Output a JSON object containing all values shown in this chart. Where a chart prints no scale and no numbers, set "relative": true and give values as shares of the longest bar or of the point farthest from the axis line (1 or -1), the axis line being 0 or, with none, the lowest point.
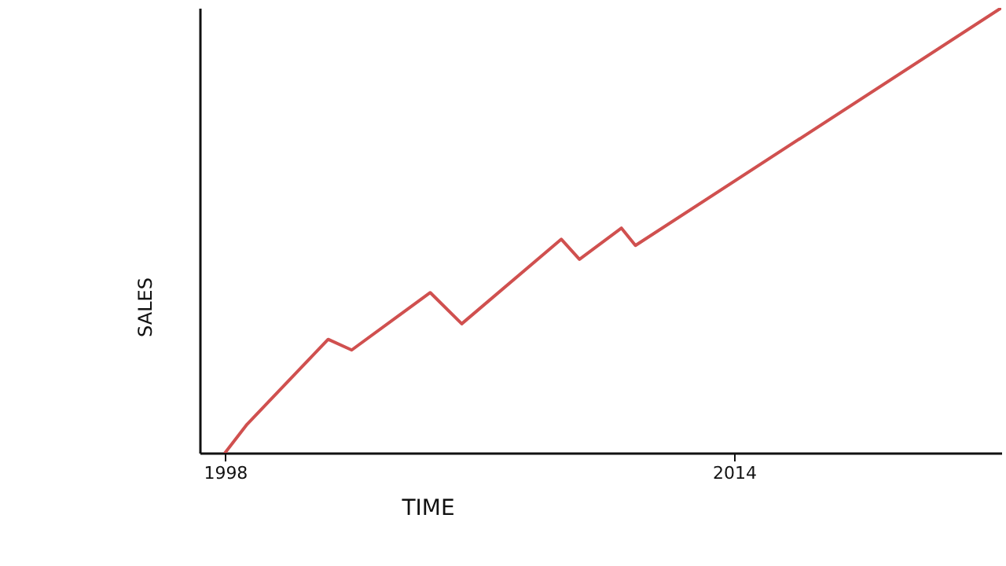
{
  "chart_data": {
    "type": "line",
    "xlabel": "TIME",
    "ylabel": "SALES",
    "relative": true,
    "x": [
      1998,
      1998.69,
      2001.24,
      2001.98,
      2004.45,
      2005.44,
      2008.57,
      2009.14,
      2010.46,
      2010.9,
      2022.4
    ],
    "series": [
      {
        "color": "#d0504f",
        "values": [
          0,
          0.064,
          0.255,
          0.231,
          0.36,
          0.29,
          0.48,
          0.435,
          0.505,
          0.466,
          1
        ]
      }
    ],
    "xlim": [
      1997.2,
      2022.4
    ],
    "xticks": [
      1998,
      2014
    ],
    "grid": false,
    "marker": "none",
    "line_style": "solid"
  }
}
